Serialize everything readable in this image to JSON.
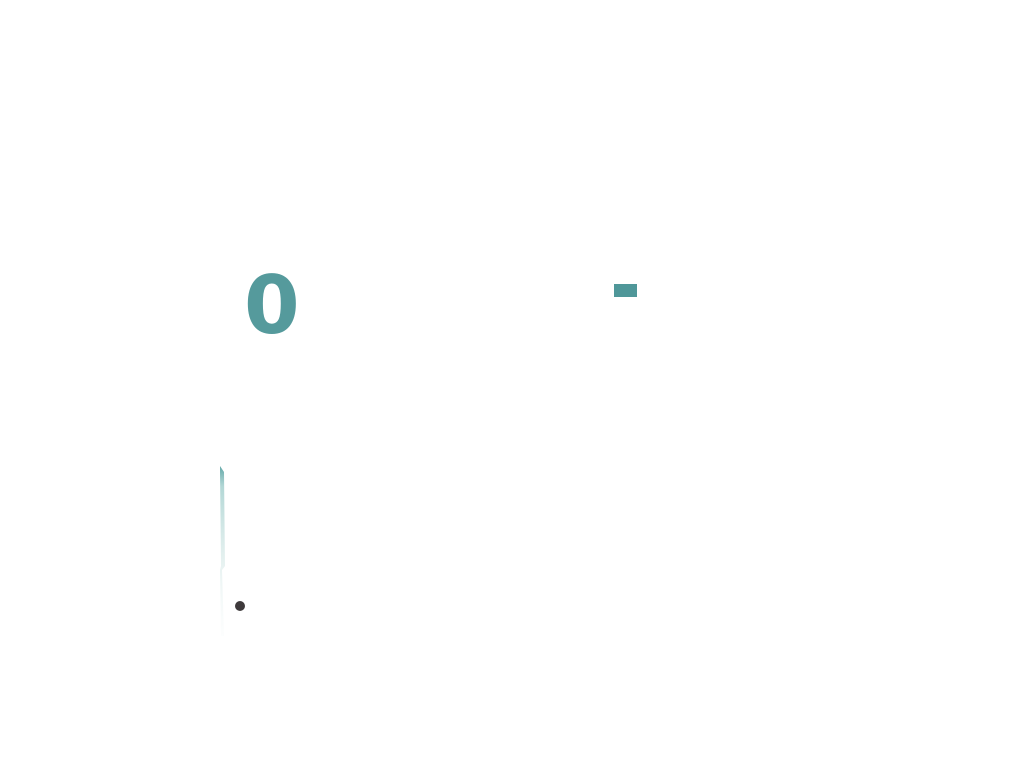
{
  "counter": {
    "value": "0"
  },
  "colors": {
    "accent": "#559a9c",
    "dash": "#4f9799",
    "bullet": "#3e3a3c",
    "background": "#ffffff"
  },
  "icons": {
    "dash": "minus-bar-icon",
    "rail": "vertical-gradient-rail",
    "bullet": "bullet-dot-icon"
  }
}
